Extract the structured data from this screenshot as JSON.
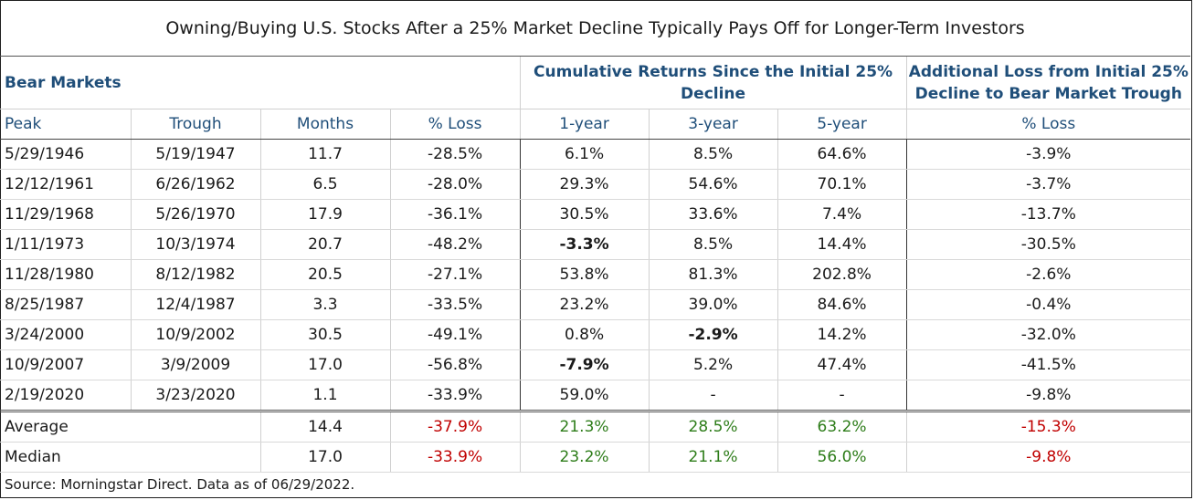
{
  "title": "Owning/Buying U.S. Stocks After a 25% Market Decline Typically Pays Off for Longer-Term Investors",
  "headers": {
    "group1": "Bear Markets",
    "group2": "Cumulative Returns Since the Initial 25% Decline",
    "group3": "Additional Loss from Initial 25% Decline to Bear Market Trough"
  },
  "columns": [
    "Peak",
    "Trough",
    "Months",
    "% Loss",
    "1-year",
    "3-year",
    "5-year",
    "% Loss"
  ],
  "rows": [
    [
      "5/29/1946",
      "5/19/1947",
      "11.7",
      "-28.5%",
      "6.1%",
      "8.5%",
      "64.6%",
      "-3.9%"
    ],
    [
      "12/12/1961",
      "6/26/1962",
      "6.5",
      "-28.0%",
      "29.3%",
      "54.6%",
      "70.1%",
      "-3.7%"
    ],
    [
      "11/29/1968",
      "5/26/1970",
      "17.9",
      "-36.1%",
      "30.5%",
      "33.6%",
      "7.4%",
      "-13.7%"
    ],
    [
      "1/11/1973",
      "10/3/1974",
      "20.7",
      "-48.2%",
      "-3.3%",
      "8.5%",
      "14.4%",
      "-30.5%"
    ],
    [
      "11/28/1980",
      "8/12/1982",
      "20.5",
      "-27.1%",
      "53.8%",
      "81.3%",
      "202.8%",
      "-2.6%"
    ],
    [
      "8/25/1987",
      "12/4/1987",
      "3.3",
      "-33.5%",
      "23.2%",
      "39.0%",
      "84.6%",
      "-0.4%"
    ],
    [
      "3/24/2000",
      "10/9/2002",
      "30.5",
      "-49.1%",
      "0.8%",
      "-2.9%",
      "14.2%",
      "-32.0%"
    ],
    [
      "10/9/2007",
      "3/9/2009",
      "17.0",
      "-56.8%",
      "-7.9%",
      "5.2%",
      "47.4%",
      "-41.5%"
    ],
    [
      "2/19/2020",
      "3/23/2020",
      "1.1",
      "-33.9%",
      "59.0%",
      "-",
      "-",
      "-9.8%"
    ]
  ],
  "summary": [
    {
      "label": "Average",
      "values": [
        "14.4",
        "-37.9%",
        "21.3%",
        "28.5%",
        "63.2%",
        "-15.3%"
      ]
    },
    {
      "label": "Median",
      "values": [
        "17.0",
        "-33.9%",
        "23.2%",
        "21.1%",
        "56.0%",
        "-9.8%"
      ]
    }
  ],
  "source": "Source: Morningstar Direct. Data as of 06/29/2022.",
  "colors": {
    "negative": "#c00000",
    "positive": "#2e7d1a",
    "header": "#1f4e79"
  }
}
